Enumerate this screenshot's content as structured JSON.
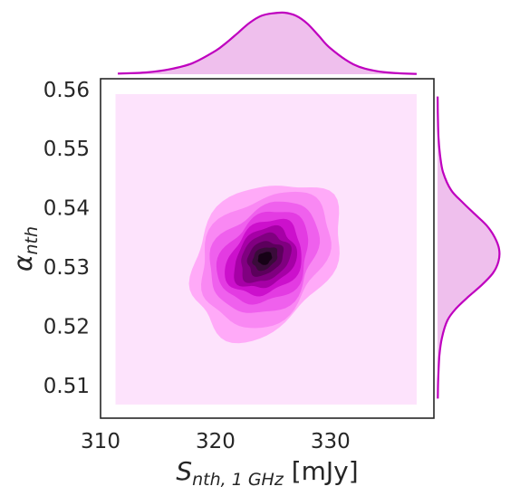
{
  "chart_data": {
    "type": "jointplot-kde",
    "main": {
      "type": "kde-contour",
      "xlabel": {
        "main": "S",
        "sub": "nth, 1 GHz",
        "unit": " [mJy]"
      },
      "ylabel": {
        "main": "α",
        "sub": "nth"
      },
      "xlim": [
        310,
        339
      ],
      "ylim": [
        0.5045,
        0.5618
      ],
      "x_ticks": [
        310,
        320,
        330
      ],
      "x_tick_labels": [
        "310",
        "320",
        "330"
      ],
      "y_ticks": [
        0.51,
        0.52,
        0.53,
        0.54,
        0.55,
        0.56
      ],
      "y_tick_labels": [
        "0.51",
        "0.52",
        "0.53",
        "0.54",
        "0.55",
        "0.56"
      ],
      "grid": false,
      "background_region": {
        "x": [
          311.3,
          337.5
        ],
        "y": [
          0.5068,
          0.5592
        ]
      },
      "peak": {
        "x": 324.3,
        "y": 0.5315
      },
      "levels": [
        {
          "color": "#ffaaf8",
          "rx": 7.6,
          "ry": 0.0108,
          "angle_deg": 50
        },
        {
          "color": "#f988f3",
          "rx": 6.5,
          "ry": 0.0094,
          "angle_deg": 50
        },
        {
          "color": "#ef60ed",
          "rx": 5.4,
          "ry": 0.0079,
          "angle_deg": 48
        },
        {
          "color": "#e33be2",
          "rx": 4.5,
          "ry": 0.0066,
          "angle_deg": 47
        },
        {
          "color": "#cc10cc",
          "rx": 3.7,
          "ry": 0.0055,
          "angle_deg": 45
        },
        {
          "color": "#a600a6",
          "rx": 3.0,
          "ry": 0.0045,
          "angle_deg": 44
        },
        {
          "color": "#800080",
          "rx": 2.4,
          "ry": 0.0036,
          "angle_deg": 42
        },
        {
          "color": "#5c005c",
          "rx": 1.7,
          "ry": 0.0026,
          "angle_deg": 40
        },
        {
          "color": "#3a0b3a",
          "rx": 1.2,
          "ry": 0.0017,
          "angle_deg": 38
        },
        {
          "color": "#170217",
          "rx": 0.65,
          "ry": 0.001,
          "angle_deg": 35
        }
      ]
    },
    "marginal_x": {
      "type": "kde",
      "x": [
        311.5,
        314,
        316,
        318,
        320,
        321,
        322,
        323,
        324,
        325,
        326,
        327,
        328,
        329,
        330,
        332,
        334,
        336,
        337.5
      ],
      "density": [
        0.01,
        0.03,
        0.08,
        0.18,
        0.38,
        0.52,
        0.68,
        0.84,
        0.95,
        0.99,
        1.0,
        0.95,
        0.82,
        0.62,
        0.42,
        0.16,
        0.05,
        0.015,
        0.005
      ]
    },
    "marginal_y": {
      "type": "kde",
      "y": [
        0.5078,
        0.511,
        0.515,
        0.518,
        0.521,
        0.523,
        0.525,
        0.527,
        0.529,
        0.531,
        0.533,
        0.535,
        0.537,
        0.539,
        0.541,
        0.543,
        0.546,
        0.549,
        0.552,
        0.556,
        0.5588
      ],
      "density": [
        0.005,
        0.01,
        0.03,
        0.07,
        0.16,
        0.3,
        0.5,
        0.72,
        0.9,
        0.99,
        1.0,
        0.93,
        0.8,
        0.6,
        0.4,
        0.22,
        0.09,
        0.04,
        0.015,
        0.005,
        0.002
      ]
    },
    "colors": {
      "fill_light": "#fde3fc",
      "marginal_line": "#bf00bf",
      "marginal_fill": "#efbfed",
      "frame": "#262626"
    }
  }
}
